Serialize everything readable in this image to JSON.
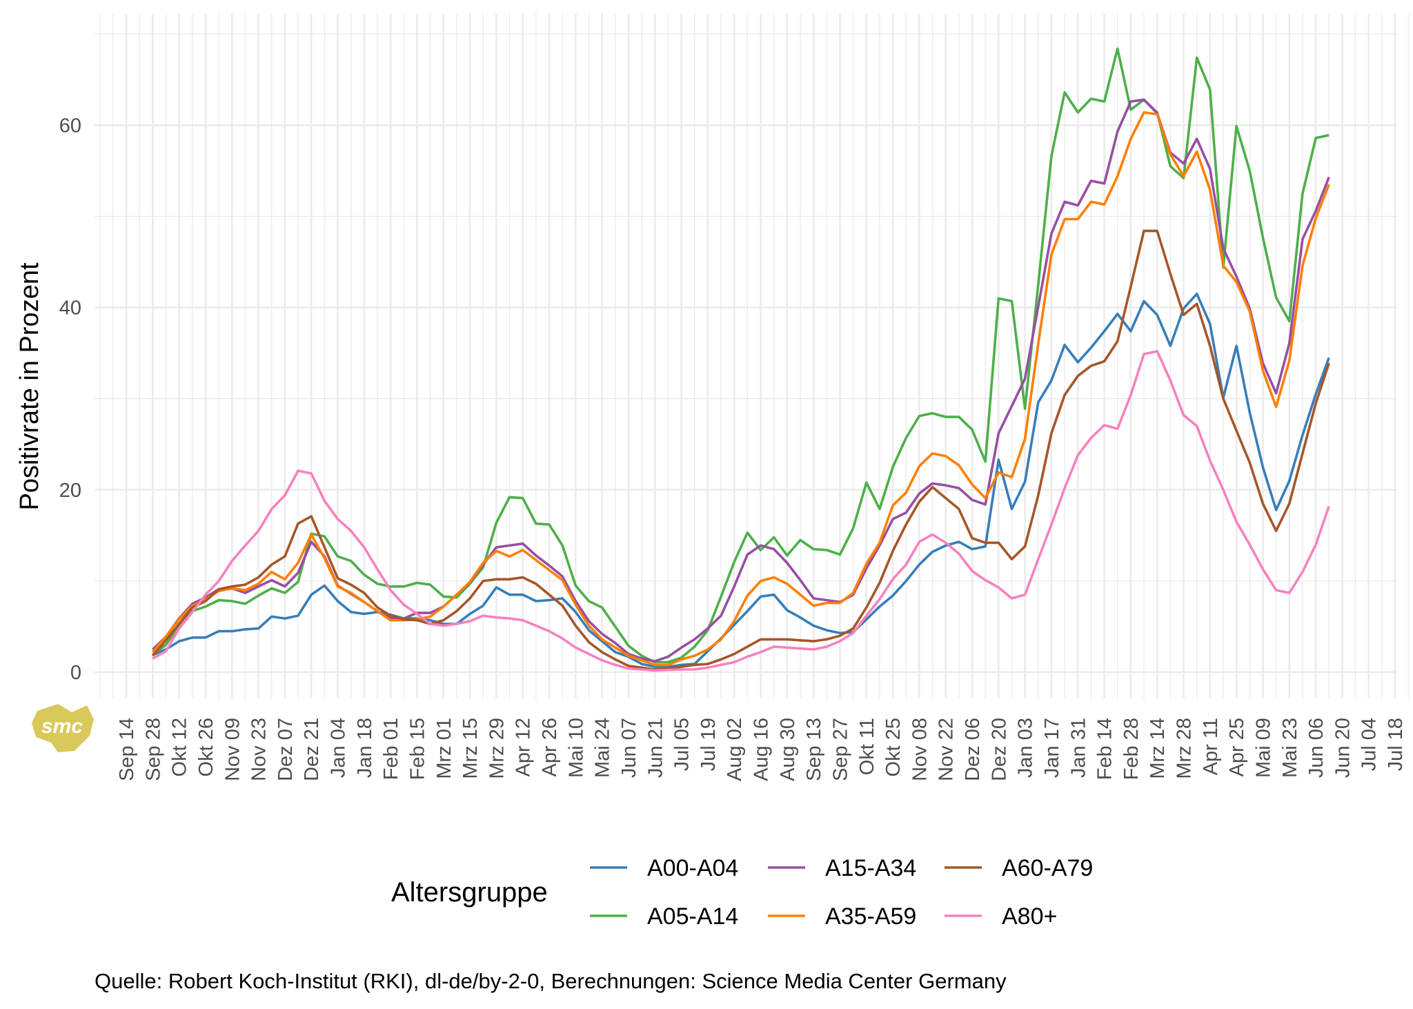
{
  "chart_data": {
    "type": "line",
    "title": "",
    "xlabel": "",
    "ylabel": "Positivrate in Prozent",
    "x_unit": "weeks since Sep 14 (2020)",
    "x_ticks": [
      "Sep 14",
      "Sep 28",
      "Okt 12",
      "Okt 26",
      "Nov 09",
      "Nov 23",
      "Dez 07",
      "Dez 21",
      "Jan 04",
      "Jan 18",
      "Feb 01",
      "Feb 15",
      "Mrz 01",
      "Mrz 15",
      "Mrz 29",
      "Apr 12",
      "Apr 26",
      "Mai 10",
      "Mai 24",
      "Jun 07",
      "Jun 21",
      "Jul 05",
      "Jul 19",
      "Aug 02",
      "Aug 16",
      "Aug 30",
      "Sep 13",
      "Sep 27",
      "Okt 11",
      "Okt 25",
      "Nov 08",
      "Nov 22",
      "Dez 06",
      "Dez 20",
      "Jan 03",
      "Jan 17",
      "Jan 31",
      "Feb 14",
      "Feb 28",
      "Mrz 14",
      "Mrz 28",
      "Apr 11",
      "Apr 25",
      "Mai 09",
      "Mai 23",
      "Jun 06",
      "Jun 20",
      "Jul 04",
      "Jul 18"
    ],
    "x_tick_step_weeks": 2,
    "series_x_start_week": 2,
    "series_x_step_week": 1,
    "y_ticks": [
      "0",
      "20",
      "40",
      "60"
    ],
    "y_tick_values": [
      0,
      20,
      40,
      60
    ],
    "ylim": [
      -3,
      74
    ],
    "xlim_weeks": [
      -2.3,
      98
    ],
    "grid": true,
    "legend_title": "Altersgruppe",
    "legend_position": "bottom",
    "series": [
      {
        "name": "A00-A04",
        "color": "#377eb8",
        "values": [
          1.9,
          2.5,
          3.4,
          3.8,
          3.8,
          4.5,
          4.5,
          4.7,
          4.8,
          6.1,
          5.9,
          6.2,
          8.5,
          9.5,
          7.8,
          6.6,
          6.4,
          6.6,
          6.3,
          5.9,
          5.9,
          5.7,
          5.3,
          5.3,
          6.4,
          7.3,
          9.3,
          8.5,
          8.5,
          7.8,
          7.9,
          8.1,
          6.6,
          4.6,
          3.4,
          2.2,
          1.7,
          0.9,
          0.6,
          0.6,
          0.8,
          0.9,
          2.3,
          3.7,
          5.2,
          6.7,
          8.3,
          8.5,
          6.8,
          6.0,
          5.1,
          4.6,
          4.3,
          4.4,
          5.8,
          7.2,
          8.4,
          10.0,
          11.8,
          13.2,
          13.9,
          14.3,
          13.5,
          13.8,
          23.3,
          17.9,
          20.9,
          29.6,
          32.0,
          35.9,
          34.0,
          35.6,
          37.4,
          39.3,
          37.4,
          40.7,
          39.2,
          35.8,
          39.9,
          41.5,
          38.2,
          30.1,
          35.8,
          28.5,
          22.5,
          17.8,
          21.0,
          26.0,
          30.5,
          34.5
        ]
      },
      {
        "name": "A05-A14",
        "color": "#4daf4a",
        "values": [
          1.9,
          3.0,
          5.1,
          6.7,
          7.2,
          7.9,
          7.8,
          7.5,
          8.4,
          9.2,
          8.7,
          9.9,
          15.2,
          14.9,
          12.7,
          12.2,
          10.7,
          9.7,
          9.4,
          9.4,
          9.8,
          9.6,
          8.3,
          8.2,
          9.7,
          11.5,
          16.4,
          19.2,
          19.1,
          16.3,
          16.2,
          13.9,
          9.5,
          7.8,
          7.1,
          5.0,
          2.9,
          1.8,
          1.1,
          1.1,
          1.6,
          2.8,
          4.6,
          8.3,
          12.1,
          15.3,
          13.4,
          14.8,
          12.8,
          14.5,
          13.5,
          13.4,
          12.9,
          15.8,
          20.8,
          17.9,
          22.5,
          25.7,
          28.1,
          28.4,
          28.0,
          28.0,
          26.6,
          23.1,
          41.0,
          40.7,
          28.9,
          42.5,
          56.6,
          63.6,
          61.4,
          62.9,
          62.6,
          68.4,
          61.7,
          62.8,
          61.4,
          55.5,
          54.2,
          67.4,
          63.9,
          44.4,
          59.9,
          55.0,
          47.7,
          41.1,
          38.5,
          52.5,
          58.6,
          58.9
        ]
      },
      {
        "name": "A15-A34",
        "color": "#984ea3",
        "values": [
          2.5,
          3.9,
          5.9,
          7.5,
          8.2,
          9.1,
          9.2,
          8.7,
          9.4,
          10.1,
          9.4,
          10.9,
          14.3,
          12.7,
          9.5,
          8.6,
          7.7,
          6.7,
          5.9,
          5.9,
          6.5,
          6.5,
          7.2,
          8.5,
          9.8,
          11.8,
          13.7,
          13.9,
          14.1,
          12.8,
          11.7,
          10.5,
          7.8,
          5.6,
          4.2,
          3.2,
          2.0,
          1.5,
          1.2,
          1.7,
          2.7,
          3.6,
          4.8,
          6.2,
          9.4,
          12.9,
          13.9,
          13.5,
          12.0,
          10.1,
          8.1,
          7.9,
          7.7,
          8.5,
          11.4,
          13.9,
          16.8,
          17.5,
          19.6,
          20.7,
          20.5,
          20.2,
          18.9,
          18.4,
          26.2,
          29.2,
          32.2,
          40.1,
          48.1,
          51.6,
          51.2,
          53.9,
          53.6,
          59.3,
          62.6,
          62.8,
          61.3,
          57.0,
          55.8,
          58.5,
          55.2,
          46.5,
          43.4,
          39.9,
          33.9,
          30.6,
          36.1,
          47.5,
          50.6,
          54.3
        ]
      },
      {
        "name": "A35-A59",
        "color": "#ff7f00",
        "values": [
          2.2,
          3.9,
          5.8,
          7.3,
          8.0,
          8.9,
          9.2,
          9.0,
          9.7,
          11.0,
          10.2,
          12.0,
          15.1,
          12.5,
          9.4,
          8.7,
          7.7,
          6.7,
          5.7,
          5.7,
          5.8,
          6.1,
          7.2,
          8.5,
          9.9,
          12.0,
          13.3,
          12.7,
          13.4,
          12.3,
          11.2,
          10.1,
          7.4,
          5.1,
          3.6,
          2.7,
          1.8,
          1.3,
          0.8,
          0.8,
          1.4,
          1.8,
          2.5,
          3.6,
          5.6,
          8.4,
          10.0,
          10.4,
          9.7,
          8.5,
          7.3,
          7.6,
          7.6,
          8.7,
          11.9,
          14.2,
          18.3,
          19.7,
          22.6,
          24.0,
          23.7,
          22.7,
          20.6,
          19.1,
          21.9,
          21.4,
          25.6,
          36.0,
          45.8,
          49.7,
          49.7,
          51.6,
          51.3,
          54.4,
          58.5,
          61.4,
          61.2,
          56.8,
          54.4,
          57.1,
          52.9,
          44.6,
          42.8,
          39.6,
          33.1,
          29.1,
          34.2,
          44.6,
          49.8,
          53.5
        ]
      },
      {
        "name": "A60-A79",
        "color": "#a65628",
        "values": [
          1.8,
          3.5,
          5.3,
          7.1,
          7.8,
          9.1,
          9.4,
          9.6,
          10.4,
          11.8,
          12.7,
          16.3,
          17.1,
          13.7,
          10.3,
          9.6,
          8.7,
          7.1,
          6.2,
          5.8,
          5.7,
          5.3,
          5.7,
          6.7,
          8.1,
          10.0,
          10.2,
          10.2,
          10.4,
          9.7,
          8.5,
          7.3,
          5.1,
          3.3,
          2.2,
          1.4,
          0.7,
          0.5,
          0.3,
          0.4,
          0.6,
          0.8,
          0.9,
          1.4,
          2.0,
          2.8,
          3.6,
          3.6,
          3.6,
          3.5,
          3.4,
          3.6,
          4.0,
          4.8,
          7.1,
          9.8,
          13.3,
          16.2,
          18.7,
          20.3,
          19.1,
          17.9,
          14.7,
          14.2,
          14.2,
          12.4,
          13.8,
          19.4,
          26.2,
          30.4,
          32.5,
          33.6,
          34.1,
          36.3,
          42.3,
          48.4,
          48.4,
          43.7,
          39.2,
          40.4,
          35.8,
          30.0,
          26.5,
          23.0,
          18.5,
          15.5,
          18.5,
          24.0,
          29.5,
          33.9
        ]
      },
      {
        "name": "A80+",
        "color": "#f781bf",
        "values": [
          1.5,
          2.3,
          4.8,
          6.6,
          8.5,
          10.0,
          12.2,
          13.9,
          15.5,
          17.9,
          19.4,
          22.1,
          21.8,
          18.8,
          16.8,
          15.5,
          13.7,
          11.3,
          9.0,
          7.4,
          6.4,
          5.3,
          5.1,
          5.3,
          5.6,
          6.2,
          6.0,
          5.9,
          5.7,
          5.1,
          4.5,
          3.7,
          2.7,
          2.0,
          1.3,
          0.8,
          0.4,
          0.3,
          0.2,
          0.25,
          0.3,
          0.3,
          0.5,
          0.8,
          1.1,
          1.7,
          2.2,
          2.8,
          2.7,
          2.6,
          2.5,
          2.8,
          3.4,
          4.3,
          6.2,
          8.0,
          10.2,
          11.8,
          14.3,
          15.1,
          14.2,
          13.0,
          11.1,
          10.1,
          9.3,
          8.1,
          8.5,
          12.4,
          16.2,
          20.2,
          23.8,
          25.7,
          27.1,
          26.7,
          30.4,
          34.9,
          35.2,
          32.0,
          28.2,
          27.0,
          23.2,
          20.0,
          16.5,
          14.0,
          11.3,
          9.0,
          8.7,
          11.0,
          14.0,
          18.2
        ]
      }
    ],
    "caption": "Quelle: Robert Koch-Institut (RKI), dl-de/by-2-0, Berechnungen: Science Media Center Germany"
  },
  "logo": {
    "text": "smc",
    "color": "#d9c85a"
  }
}
